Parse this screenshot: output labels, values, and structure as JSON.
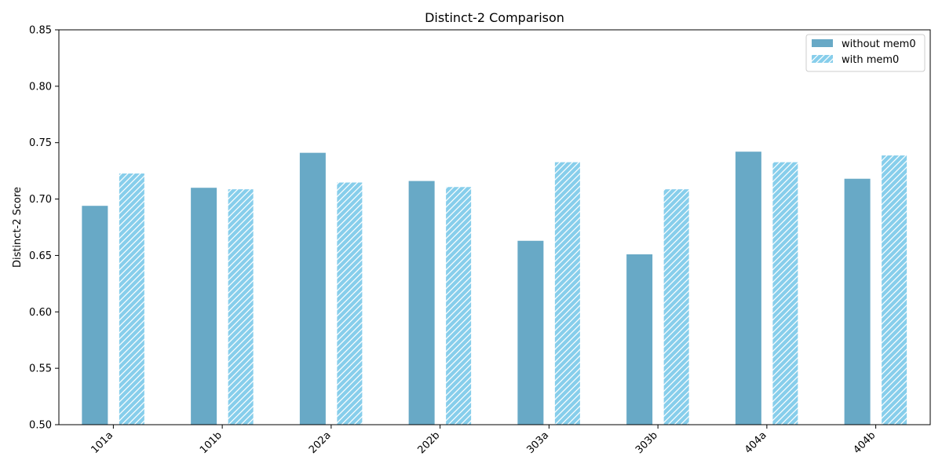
{
  "chart_data": {
    "type": "bar",
    "title": "Distinct-2 Comparison",
    "xlabel": "",
    "ylabel": "Distinct-2 Score",
    "ylim": [
      0.5,
      0.85
    ],
    "yticks": [
      "0.50",
      "0.55",
      "0.60",
      "0.65",
      "0.70",
      "0.75",
      "0.80",
      "0.85"
    ],
    "categories": [
      "101a",
      "101b",
      "202a",
      "202b",
      "303a",
      "303b",
      "404a",
      "404b"
    ],
    "series": [
      {
        "name": "without mem0",
        "values": [
          0.694,
          0.71,
          0.741,
          0.716,
          0.663,
          0.651,
          0.742,
          0.718
        ],
        "color": "#68a9c6",
        "hatch": "none"
      },
      {
        "name": "with mem0",
        "values": [
          0.723,
          0.709,
          0.715,
          0.711,
          0.733,
          0.709,
          0.733,
          0.739
        ],
        "color": "#87ceeb",
        "hatch": "diagonal"
      }
    ],
    "legend": "top-right",
    "grid": false
  }
}
